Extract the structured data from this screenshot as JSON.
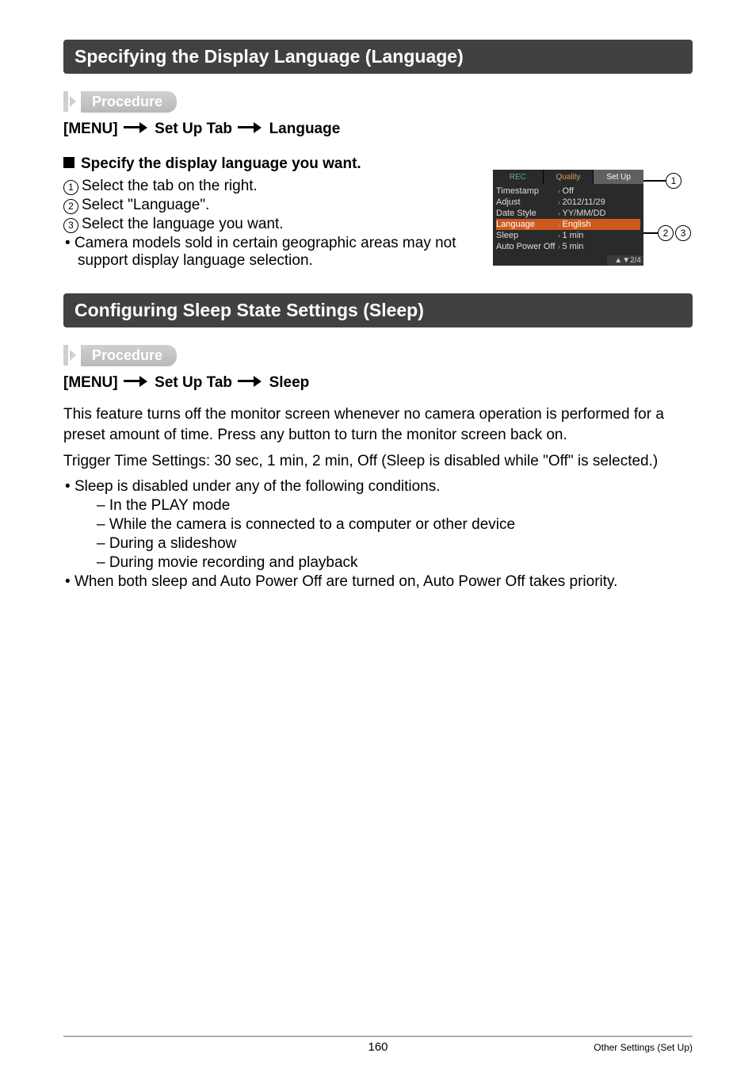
{
  "section1": {
    "heading": "Specifying the Display Language (Language)",
    "procedure_label": "Procedure",
    "path": {
      "a": "[MENU]",
      "b": "Set Up Tab",
      "c": "Language"
    },
    "sub_heading": "Specify the display language you want.",
    "steps": {
      "s1": "Select the tab on the right.",
      "s2": "Select \"Language\".",
      "s3": "Select the language you want."
    },
    "note": "Camera models sold in certain geographic areas may not support display language selection."
  },
  "camera_menu": {
    "tabs": {
      "rec": "REC",
      "quality": "Quality",
      "setup": "Set Up"
    },
    "rows": [
      {
        "k": "Timestamp",
        "v": "Off",
        "sel": false
      },
      {
        "k": "Adjust",
        "v": "2012/11/29",
        "sel": false
      },
      {
        "k": "Date Style",
        "v": "YY/MM/DD",
        "sel": false
      },
      {
        "k": "Language",
        "v": "English",
        "sel": true
      },
      {
        "k": "Sleep",
        "v": "1 min",
        "sel": false
      },
      {
        "k": "Auto Power Off",
        "v": "5 min",
        "sel": false
      }
    ],
    "page_indicator": "▲▼2/4",
    "colors": {
      "frame": "#2a2a2a",
      "selected_bg": "#cc5a1e",
      "tab_active_bg": "#606060"
    }
  },
  "section2": {
    "heading": "Configuring Sleep State Settings (Sleep)",
    "procedure_label": "Procedure",
    "path": {
      "a": "[MENU]",
      "b": "Set Up Tab",
      "c": "Sleep"
    },
    "intro": "This feature turns off the monitor screen whenever no camera operation is performed for a preset amount of time. Press any button to turn the monitor screen back on.",
    "trigger": "Trigger Time Settings: 30 sec, 1 min, 2 min, Off (Sleep is disabled while \"Off\" is selected.)",
    "bullets": {
      "b1": "Sleep is disabled under any of the following conditions.",
      "dashes": [
        "In the PLAY mode",
        "While the camera is connected to a computer or other device",
        "During a slideshow",
        "During movie recording and playback"
      ],
      "b2": "When both sleep and Auto Power Off are turned on, Auto Power Off takes priority."
    }
  },
  "footer": {
    "page": "160",
    "category": "Other Settings (Set Up)"
  },
  "callout_numbers": {
    "n1": "1",
    "n2": "2",
    "n3": "3"
  }
}
